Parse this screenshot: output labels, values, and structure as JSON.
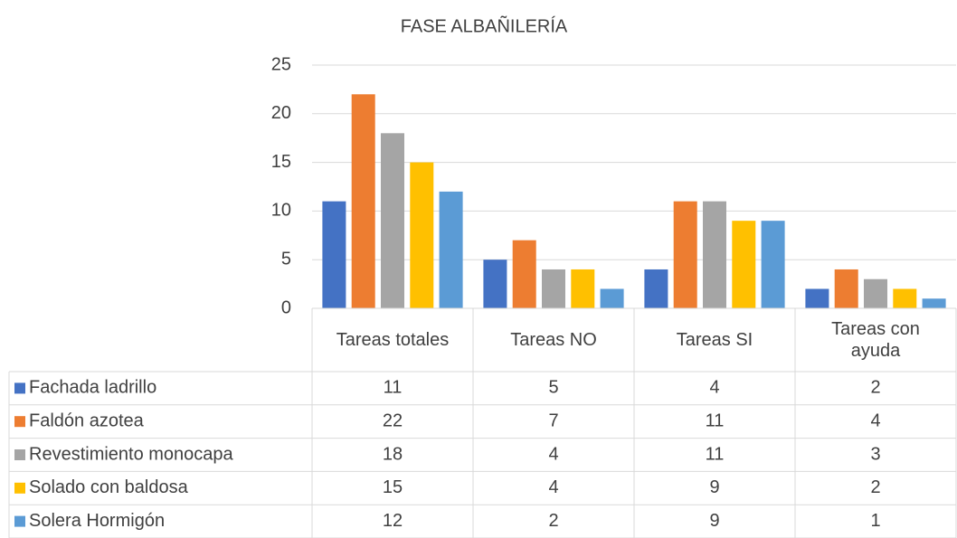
{
  "chart_data": {
    "type": "bar",
    "title": "FASE ALBAÑILERÍA",
    "categories": [
      "Tareas totales",
      "Tareas NO",
      "Tareas SI",
      "Tareas con ayuda"
    ],
    "series": [
      {
        "name": "Fachada ladrillo",
        "color": "#4472c4",
        "values": [
          11,
          5,
          4,
          2
        ]
      },
      {
        "name": "Faldón azotea",
        "color": "#ed7d31",
        "values": [
          22,
          7,
          11,
          4
        ]
      },
      {
        "name": "Revestimiento monocapa",
        "color": "#a5a5a5",
        "values": [
          18,
          4,
          11,
          3
        ]
      },
      {
        "name": "Solado con baldosa",
        "color": "#ffc000",
        "values": [
          15,
          4,
          9,
          2
        ]
      },
      {
        "name": "Solera Hormigón",
        "color": "#5b9bd5",
        "values": [
          12,
          2,
          9,
          1
        ]
      }
    ],
    "ylim": [
      0,
      25
    ],
    "yticks": [
      0,
      5,
      10,
      15,
      20,
      25
    ],
    "grid": true,
    "legend": "data-table"
  }
}
